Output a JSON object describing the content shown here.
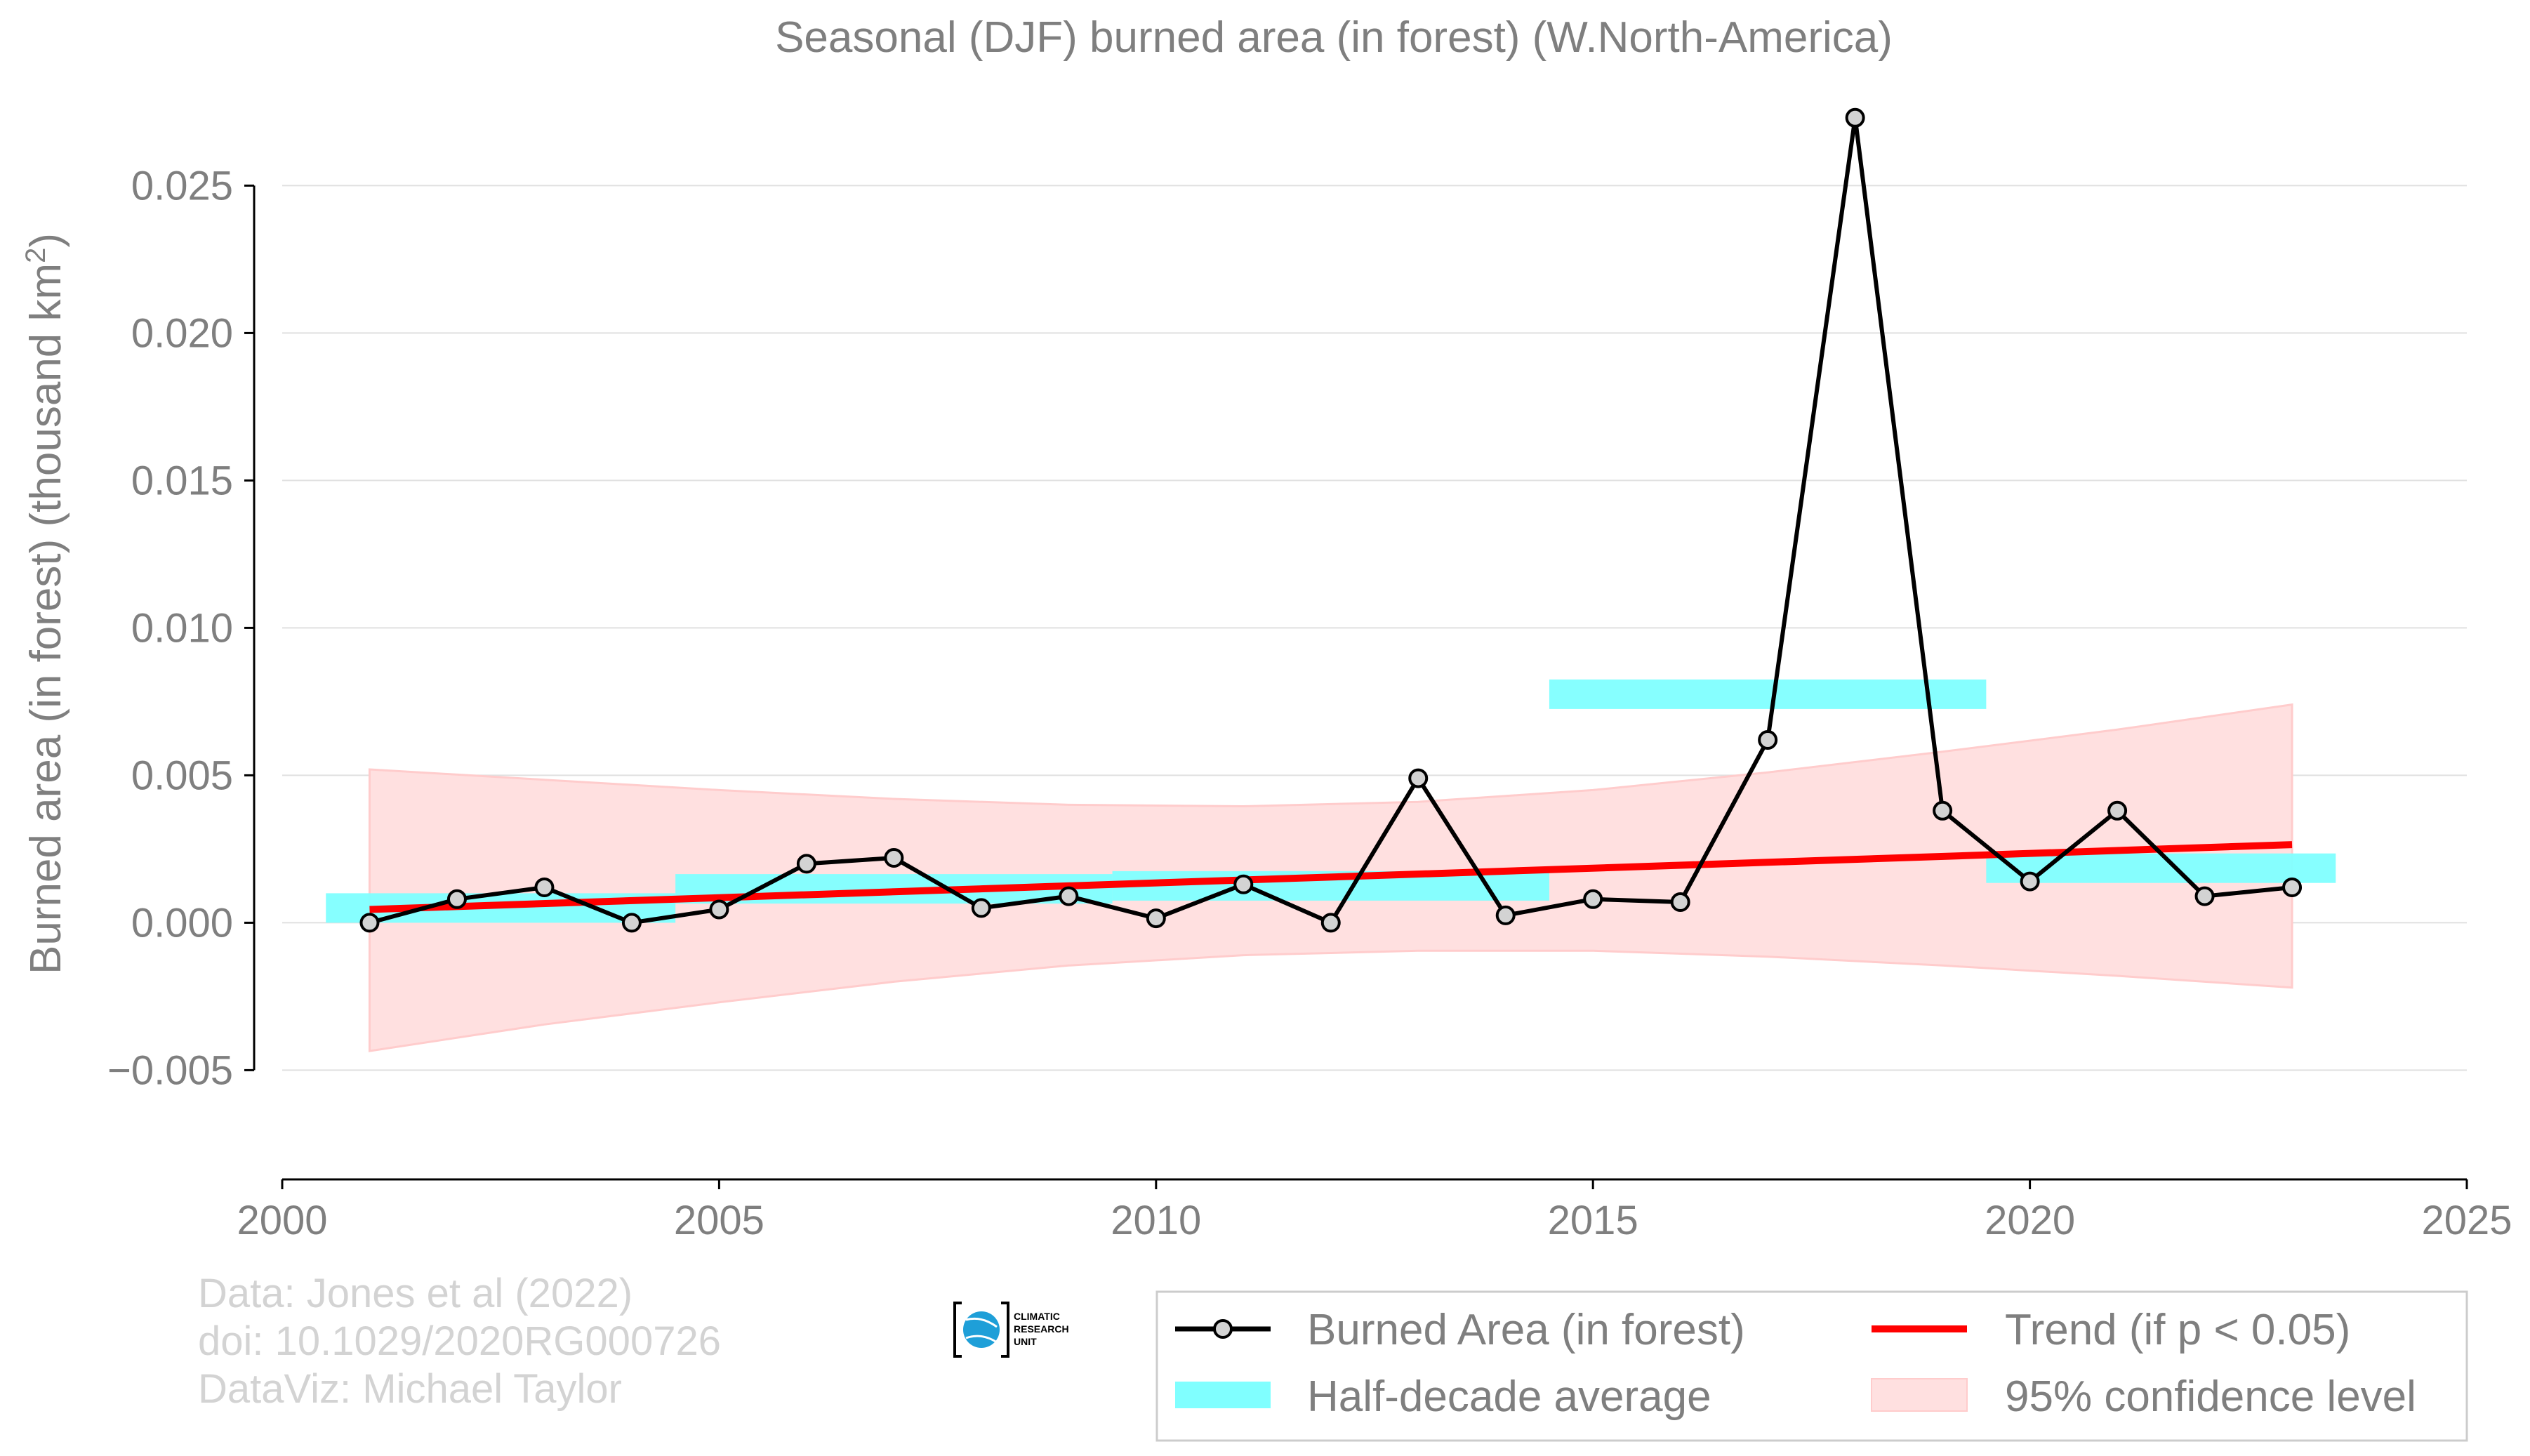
{
  "chart_data": {
    "type": "line",
    "title": "Seasonal (DJF) burned area (in forest) (W.North-America)",
    "xlabel": "",
    "ylabel": "Burned area (in forest) (thousand km",
    "ylabel_sup": "2",
    "ylabel_close": ")",
    "xlim": [
      2000,
      2025
    ],
    "ylim": [
      -0.0068,
      0.0272
    ],
    "x_ticks": [
      2000,
      2005,
      2010,
      2015,
      2020,
      2025
    ],
    "y_ticks": [
      -0.005,
      0.0,
      0.005,
      0.01,
      0.015,
      0.02,
      0.025
    ],
    "y_tick_labels": [
      "−0.005",
      "0.000",
      "0.005",
      "0.010",
      "0.015",
      "0.020",
      "0.025"
    ],
    "grid": "horizontal",
    "series": [
      {
        "name": "Burned Area (in forest)",
        "x": [
          2001,
          2002,
          2003,
          2004,
          2005,
          2006,
          2007,
          2008,
          2009,
          2010,
          2011,
          2012,
          2013,
          2014,
          2015,
          2016,
          2017,
          2018,
          2019,
          2020,
          2021,
          2022,
          2023
        ],
        "values": [
          0.0,
          0.0008,
          0.0012,
          0.0,
          0.00045,
          0.002,
          0.0022,
          0.0005,
          0.0009,
          0.00015,
          0.0013,
          0.0,
          0.0049,
          0.00025,
          0.0008,
          0.0007,
          0.0062,
          0.0273,
          0.0038,
          0.0014,
          0.0038,
          0.0009,
          0.0012
        ]
      }
    ],
    "half_decade": {
      "name": "Half-decade average",
      "segments": [
        {
          "x0": 2000.5,
          "x1": 2004.5,
          "value": 0.0005
        },
        {
          "x0": 2004.5,
          "x1": 2009.5,
          "value": 0.00115
        },
        {
          "x0": 2009.5,
          "x1": 2014.5,
          "value": 0.00125
        },
        {
          "x0": 2014.5,
          "x1": 2019.5,
          "value": 0.00775
        },
        {
          "x0": 2019.5,
          "x1": 2023.5,
          "value": 0.00185
        }
      ]
    },
    "trend": {
      "name": "Trend (if p < 0.05)",
      "x": [
        2001,
        2023
      ],
      "values": [
        0.00045,
        0.00265
      ]
    },
    "confidence": {
      "name": "95% confidence level",
      "x": [
        2001,
        2003,
        2005,
        2007,
        2009,
        2011,
        2013,
        2015,
        2017,
        2019,
        2021,
        2023
      ],
      "upper": [
        0.0052,
        0.00485,
        0.0045,
        0.0042,
        0.004,
        0.00395,
        0.0041,
        0.0045,
        0.0051,
        0.0058,
        0.00655,
        0.0074
      ],
      "lower": [
        -0.00435,
        -0.00345,
        -0.0027,
        -0.002,
        -0.00145,
        -0.0011,
        -0.00095,
        -0.00095,
        -0.00115,
        -0.00145,
        -0.0018,
        -0.0022
      ]
    },
    "legend_placement": "bottom-right",
    "colors": {
      "series": "#000000",
      "marker_fill": "#d3d3d3",
      "half_decade": "#80ffff",
      "trend": "#ff0000",
      "confidence": "#ffe0e0",
      "confidence_edge": "#ffcccc",
      "text": "#7f7f7f",
      "grid": "#e0e0e0",
      "credit": "#d3d3d3"
    }
  },
  "credits": {
    "line1": "Data: Jones et al (2022)",
    "line2": "doi: 10.1029/2020RG000726",
    "line3": "DataViz: Michael Taylor"
  },
  "logo": {
    "line1": "CLIMATIC",
    "line2": "RESEARCH",
    "line3": "UNIT",
    "icon": "globe-icon",
    "globe_color": "#1e9fd8"
  }
}
